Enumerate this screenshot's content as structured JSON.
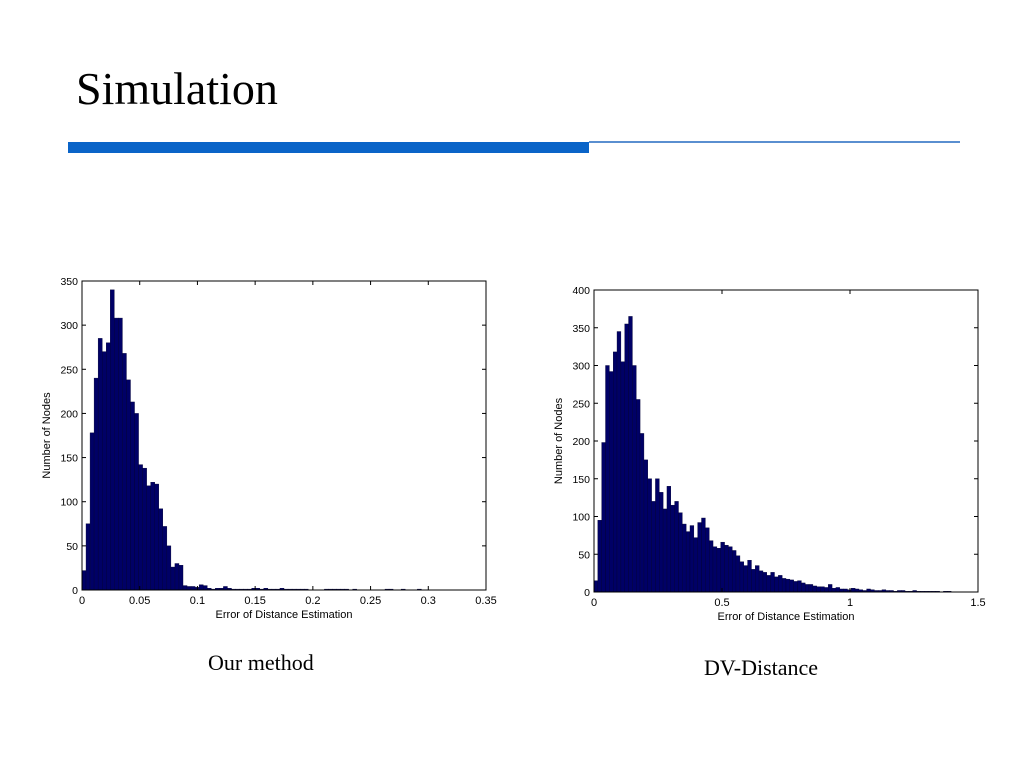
{
  "slide": {
    "title": "Simulation",
    "accent_color": "#0a64c8"
  },
  "captions": [
    "Our method",
    "DV-Distance"
  ],
  "chart_data": [
    {
      "type": "bar",
      "title": "",
      "xlabel": "Error of Distance Estimation",
      "ylabel": "Number of Nodes",
      "xlim": [
        0,
        0.35
      ],
      "ylim": [
        0,
        350
      ],
      "xticks": [
        0,
        0.05,
        0.1,
        0.15,
        0.2,
        0.25,
        0.3,
        0.35
      ],
      "xtick_labels": [
        "0",
        "0.05",
        "0.1",
        "0.15",
        "0.2",
        "0.25",
        "0.3",
        "0.35"
      ],
      "yticks": [
        0,
        50,
        100,
        150,
        200,
        250,
        300,
        350
      ],
      "grid": false,
      "bar_color": "#000066",
      "bin_start": 0,
      "bin_width": 0.0035,
      "values": [
        22,
        75,
        178,
        240,
        285,
        270,
        280,
        340,
        308,
        308,
        268,
        238,
        213,
        200,
        142,
        138,
        118,
        122,
        120,
        92,
        72,
        50,
        26,
        30,
        28,
        5,
        4,
        4,
        3,
        6,
        5,
        2,
        1,
        2,
        2,
        4,
        2,
        1,
        1,
        1,
        1,
        1,
        2,
        2,
        1,
        2,
        1,
        1,
        1,
        2,
        1,
        1,
        1,
        1,
        1,
        1,
        0,
        0,
        0,
        0,
        1,
        1,
        1,
        1,
        1,
        1,
        0,
        1,
        0,
        0,
        0,
        0,
        0,
        0,
        0,
        1,
        1,
        0,
        0,
        1,
        0,
        0,
        0,
        1,
        0,
        0,
        0,
        0,
        0,
        0,
        0,
        0,
        0,
        0,
        0,
        0,
        0,
        0,
        0,
        0
      ]
    },
    {
      "type": "bar",
      "title": "",
      "xlabel": "Error of Distance Estimation",
      "ylabel": "Number of Nodes",
      "xlim": [
        0,
        1.5
      ],
      "ylim": [
        0,
        400
      ],
      "xticks": [
        0,
        0.5,
        1,
        1.5
      ],
      "xtick_labels": [
        "0",
        "0.5",
        "1",
        "1.5"
      ],
      "yticks": [
        0,
        50,
        100,
        150,
        200,
        250,
        300,
        350,
        400
      ],
      "grid": false,
      "bar_color": "#000066",
      "bin_start": 0,
      "bin_width": 0.015,
      "values": [
        15,
        95,
        198,
        300,
        292,
        318,
        345,
        305,
        355,
        365,
        300,
        255,
        210,
        175,
        150,
        120,
        150,
        132,
        110,
        140,
        115,
        120,
        105,
        90,
        80,
        88,
        72,
        92,
        98,
        85,
        68,
        60,
        58,
        66,
        62,
        60,
        55,
        48,
        40,
        35,
        42,
        30,
        35,
        28,
        26,
        22,
        26,
        20,
        22,
        18,
        17,
        16,
        14,
        15,
        12,
        10,
        10,
        8,
        7,
        7,
        6,
        10,
        5,
        6,
        4,
        4,
        3,
        5,
        4,
        3,
        2,
        4,
        3,
        2,
        2,
        3,
        2,
        2,
        1,
        2,
        2,
        1,
        1,
        2,
        1,
        1,
        1,
        1,
        1,
        1,
        0,
        1,
        1,
        0,
        0,
        0,
        0,
        0,
        0,
        0
      ]
    }
  ]
}
